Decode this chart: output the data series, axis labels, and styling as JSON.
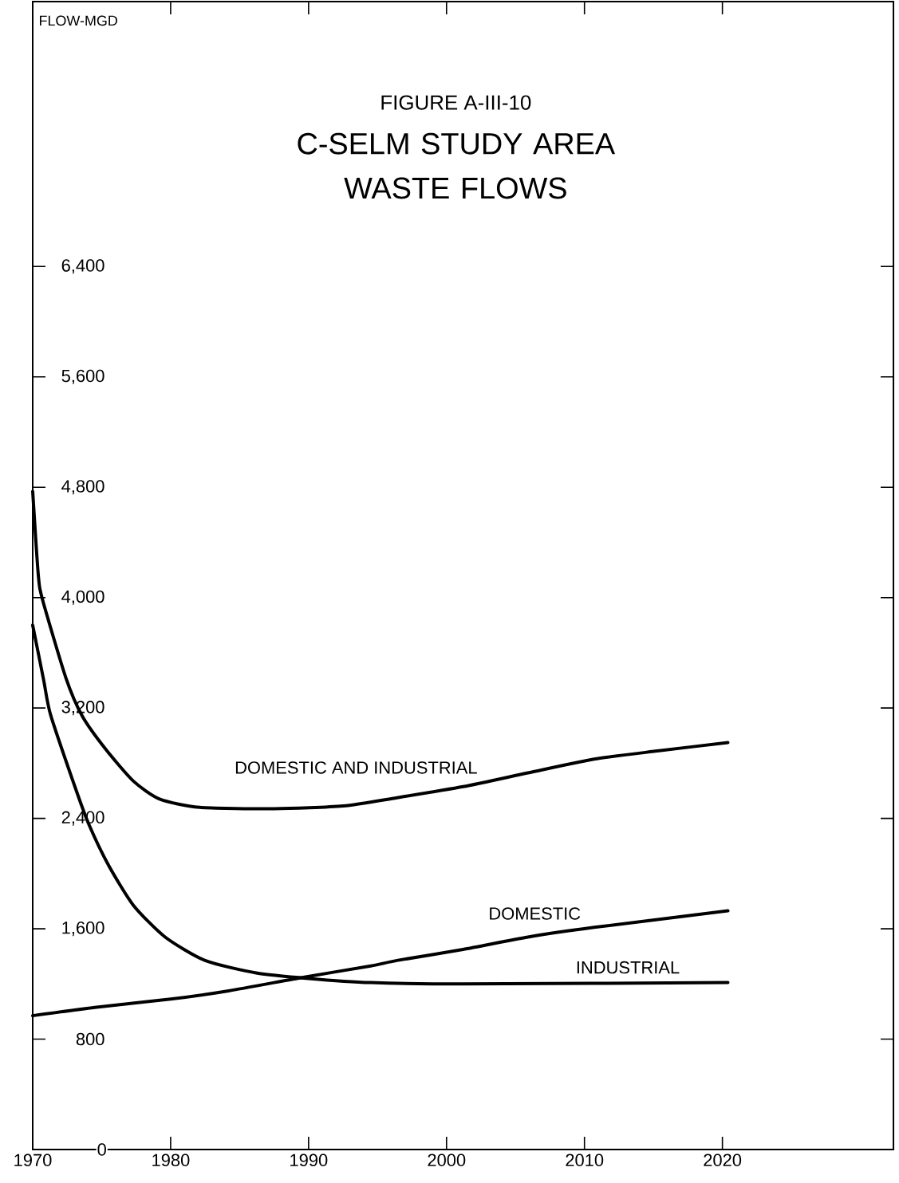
{
  "chart_data": {
    "type": "line",
    "subtitle": "FIGURE A-III-10",
    "title": "C-SELM STUDY AREA WASTE FLOWS",
    "ylabel": "FLOW-MGD",
    "xlim": [
      1970,
      2032.4
    ],
    "xticks": [
      1970,
      1980,
      1990,
      2000,
      2010,
      2020
    ],
    "ylim": [
      0,
      8320
    ],
    "yticks": [
      0,
      {
        "value": 800,
        "label": "800"
      },
      {
        "value": 1600,
        "label": "1,600"
      },
      {
        "value": 2400,
        "label": "2,400"
      },
      {
        "value": 3200,
        "label": "3,200"
      },
      {
        "value": 4000,
        "label": "4,000"
      },
      {
        "value": 4800,
        "label": "4,800"
      },
      {
        "value": 5600,
        "label": "5,600"
      },
      {
        "value": 6400,
        "label": "6,400"
      }
    ],
    "series": [
      {
        "name": "DOMESTIC AND INDUSTRIAL",
        "color": "#000000",
        "x": [
          1970,
          1970.4,
          1970.7,
          1972.4,
          1973.6,
          1975.3,
          1977.3,
          1979.2,
          1982.1,
          1987.5,
          1992.5,
          1996.4,
          2001.2,
          2005.9,
          2010.7,
          2015.4,
          2020.4
        ],
        "values": [
          4770,
          4170,
          3990,
          3420,
          3140,
          2900,
          2670,
          2540,
          2480,
          2470,
          2490,
          2550,
          2630,
          2730,
          2830,
          2890,
          2950
        ]
      },
      {
        "name": "INDUSTRIAL",
        "color": "#000000",
        "x": [
          1970,
          1970.8,
          1971.3,
          1973.2,
          1974.1,
          1975.5,
          1977.3,
          1979.6,
          1982.5,
          1986.2,
          1990,
          1994.5,
          2001.2,
          2020.4
        ],
        "values": [
          3800,
          3400,
          3150,
          2590,
          2350,
          2060,
          1770,
          1540,
          1370,
          1280,
          1240,
          1210,
          1200,
          1210
        ]
      },
      {
        "name": "DOMESTIC",
        "color": "#000000",
        "x": [
          1970,
          1974.5,
          1980,
          1984.2,
          1989.7,
          1994.5,
          1996.4,
          2001.2,
          2005.9,
          2010.7,
          2020.4
        ],
        "values": [
          970,
          1030,
          1090,
          1150,
          1250,
          1330,
          1370,
          1450,
          1540,
          1610,
          1730
        ]
      }
    ]
  }
}
